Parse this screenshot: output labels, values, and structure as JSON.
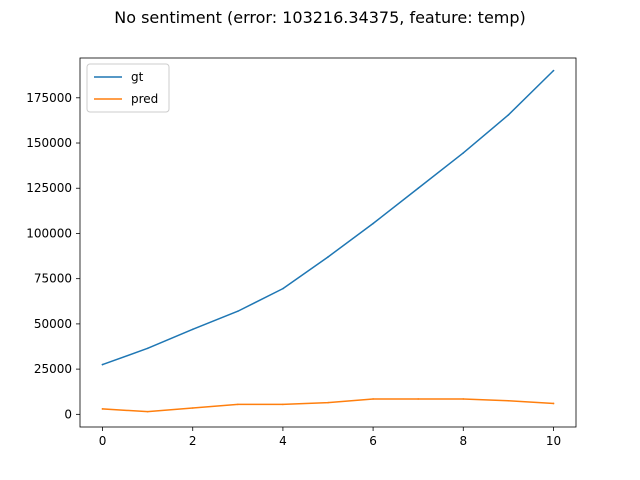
{
  "chart_data": {
    "type": "line",
    "title": "No sentiment (error: 103216.34375, feature: temp)",
    "xlabel": "",
    "ylabel": "",
    "x": [
      0,
      1,
      2,
      3,
      4,
      5,
      6,
      7,
      8,
      9,
      10
    ],
    "xlim": [
      -0.5,
      10.5
    ],
    "ylim": [
      -7000,
      197000
    ],
    "x_ticks": [
      0,
      2,
      4,
      6,
      8,
      10
    ],
    "y_ticks": [
      0,
      25000,
      50000,
      75000,
      100000,
      125000,
      150000,
      175000
    ],
    "grid": false,
    "legend_position": "top-left",
    "series": [
      {
        "name": "gt",
        "color": "#1f77b4",
        "values": [
          27500,
          36500,
          47000,
          57000,
          69500,
          87000,
          105500,
          125000,
          144500,
          165500,
          190000
        ]
      },
      {
        "name": "pred",
        "color": "#ff7f0e",
        "values": [
          3000,
          1500,
          3500,
          5500,
          5500,
          6500,
          8500,
          8500,
          8500,
          7500,
          6000
        ]
      }
    ]
  }
}
